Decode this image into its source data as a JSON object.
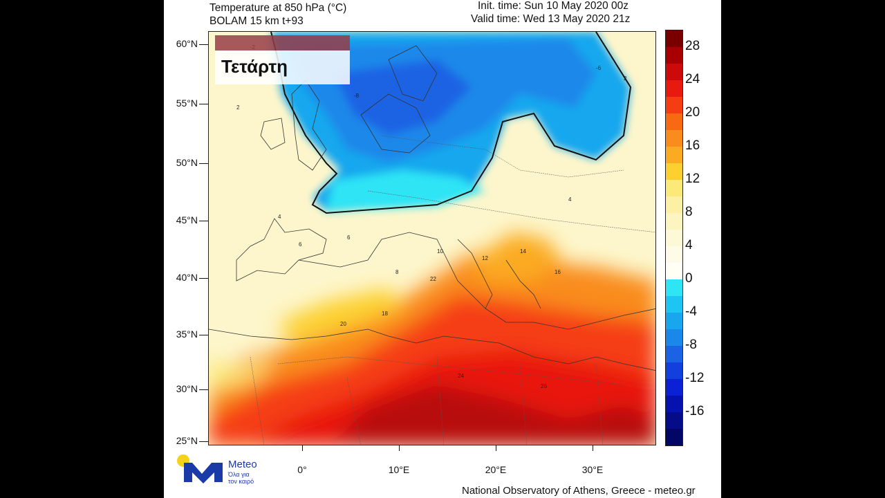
{
  "header": {
    "title": "Temperature at 850 hPa (°C)",
    "model": "BOLAM 15 km t+93",
    "init_time": "Init. time: Sun 10 May 2020 00z",
    "valid_time": "Valid time: Wed 13 May 2020 21z"
  },
  "day_label": "Τετάρτη",
  "latitude_labels": [
    "60°N",
    "55°N",
    "50°N",
    "45°N",
    "40°N",
    "35°N",
    "30°N",
    "25°N"
  ],
  "longitude_labels": [
    "0°",
    "10°E",
    "20°E",
    "30°E"
  ],
  "colorbar": {
    "labels": [
      "28",
      "24",
      "20",
      "16",
      "12",
      "8",
      "4",
      "0",
      "-4",
      "-8",
      "-12",
      "-16"
    ],
    "levels": [
      {
        "value": 30,
        "color": "#7a0000"
      },
      {
        "value": 28,
        "color": "#a80000"
      },
      {
        "value": 26,
        "color": "#cc0a0a"
      },
      {
        "value": 24,
        "color": "#e8190f"
      },
      {
        "value": 22,
        "color": "#f53c12"
      },
      {
        "value": 20,
        "color": "#f76a12"
      },
      {
        "value": 18,
        "color": "#f98c1a"
      },
      {
        "value": 16,
        "color": "#fbab22"
      },
      {
        "value": 14,
        "color": "#fcd031"
      },
      {
        "value": 12,
        "color": "#fbe97a"
      },
      {
        "value": 10,
        "color": "#fbf0a4"
      },
      {
        "value": 8,
        "color": "#fcf5c0"
      },
      {
        "value": 6,
        "color": "#fdf8d6"
      },
      {
        "value": 4,
        "color": "#fffbe9"
      },
      {
        "value": 2,
        "color": "#fffff6"
      },
      {
        "value": 0,
        "color": "#2ee4f5"
      },
      {
        "value": -2,
        "color": "#1cc5f2"
      },
      {
        "value": -4,
        "color": "#18a7ee"
      },
      {
        "value": -6,
        "color": "#1a88ea"
      },
      {
        "value": -8,
        "color": "#1a63e4"
      },
      {
        "value": -10,
        "color": "#1240dc"
      },
      {
        "value": -12,
        "color": "#0a22d4"
      },
      {
        "value": -14,
        "color": "#0612b0"
      },
      {
        "value": -16,
        "color": "#040c8a"
      },
      {
        "value": -18,
        "color": "#020766"
      }
    ]
  },
  "map_labels": [
    "2",
    "2",
    "4",
    "4",
    "6",
    "6",
    "8",
    "10",
    "12",
    "14",
    "16",
    "18",
    "20",
    "22",
    "24",
    "26",
    "-2",
    "-6",
    "-8"
  ],
  "logo": {
    "brand": "Meteo",
    "tagline_1": "Όλα για",
    "tagline_2": "τον καιρό",
    "color": "#1a3aa8",
    "sun_color": "#f7d21a"
  },
  "footer": "National Observatory of Athens, Greece - meteo.gr"
}
